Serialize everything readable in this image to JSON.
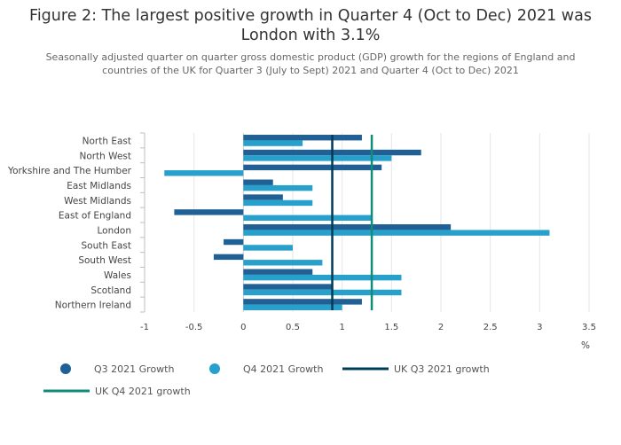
{
  "title": "Figure 2: The largest positive growth in Quarter 4 (Oct to Dec) 2021 was London with 3.1%",
  "subtitle": "Seasonally adjusted quarter on quarter gross domestic product (GDP) growth for the regions of England and countries of the UK for Quarter 3 (July to Sept) 2021 and Quarter 4 (Oct to Dec) 2021",
  "chart_data": {
    "type": "bar",
    "orientation": "horizontal",
    "categories": [
      "North East",
      "North West",
      "Yorkshire and The Humber",
      "East Midlands",
      "West Midlands",
      "East of England",
      "London",
      "South East",
      "South West",
      "Wales",
      "Scotland",
      "Northern Ireland"
    ],
    "series": [
      {
        "name": "Q3 2021 Growth",
        "color": "#206095",
        "values": [
          1.2,
          1.8,
          1.4,
          0.3,
          0.4,
          -0.7,
          2.1,
          -0.2,
          -0.3,
          0.7,
          0.9,
          1.2
        ]
      },
      {
        "name": "Q4 2021 Growth",
        "color": "#27a0cc",
        "values": [
          0.6,
          1.5,
          -0.8,
          0.7,
          0.7,
          1.3,
          3.1,
          0.5,
          0.8,
          1.6,
          1.6,
          1.0
        ]
      }
    ],
    "reference_lines": [
      {
        "name": "UK Q3 2021 growth",
        "color": "#003c57",
        "value": 0.9
      },
      {
        "name": "UK Q4 2021 growth",
        "color": "#118c7b",
        "value": 1.3
      }
    ],
    "xlim": [
      -1,
      3.5
    ],
    "xticks": [
      -1,
      -0.5,
      0,
      0.5,
      1,
      1.5,
      2,
      2.5,
      3,
      3.5
    ],
    "xtick_labels": [
      "-1",
      "-0.5",
      "0",
      "0.5",
      "1",
      "1.5",
      "2",
      "2.5",
      "3",
      "3.5"
    ],
    "xlabel": "%",
    "ylabel": "",
    "grid": true,
    "legend_position": "bottom"
  }
}
